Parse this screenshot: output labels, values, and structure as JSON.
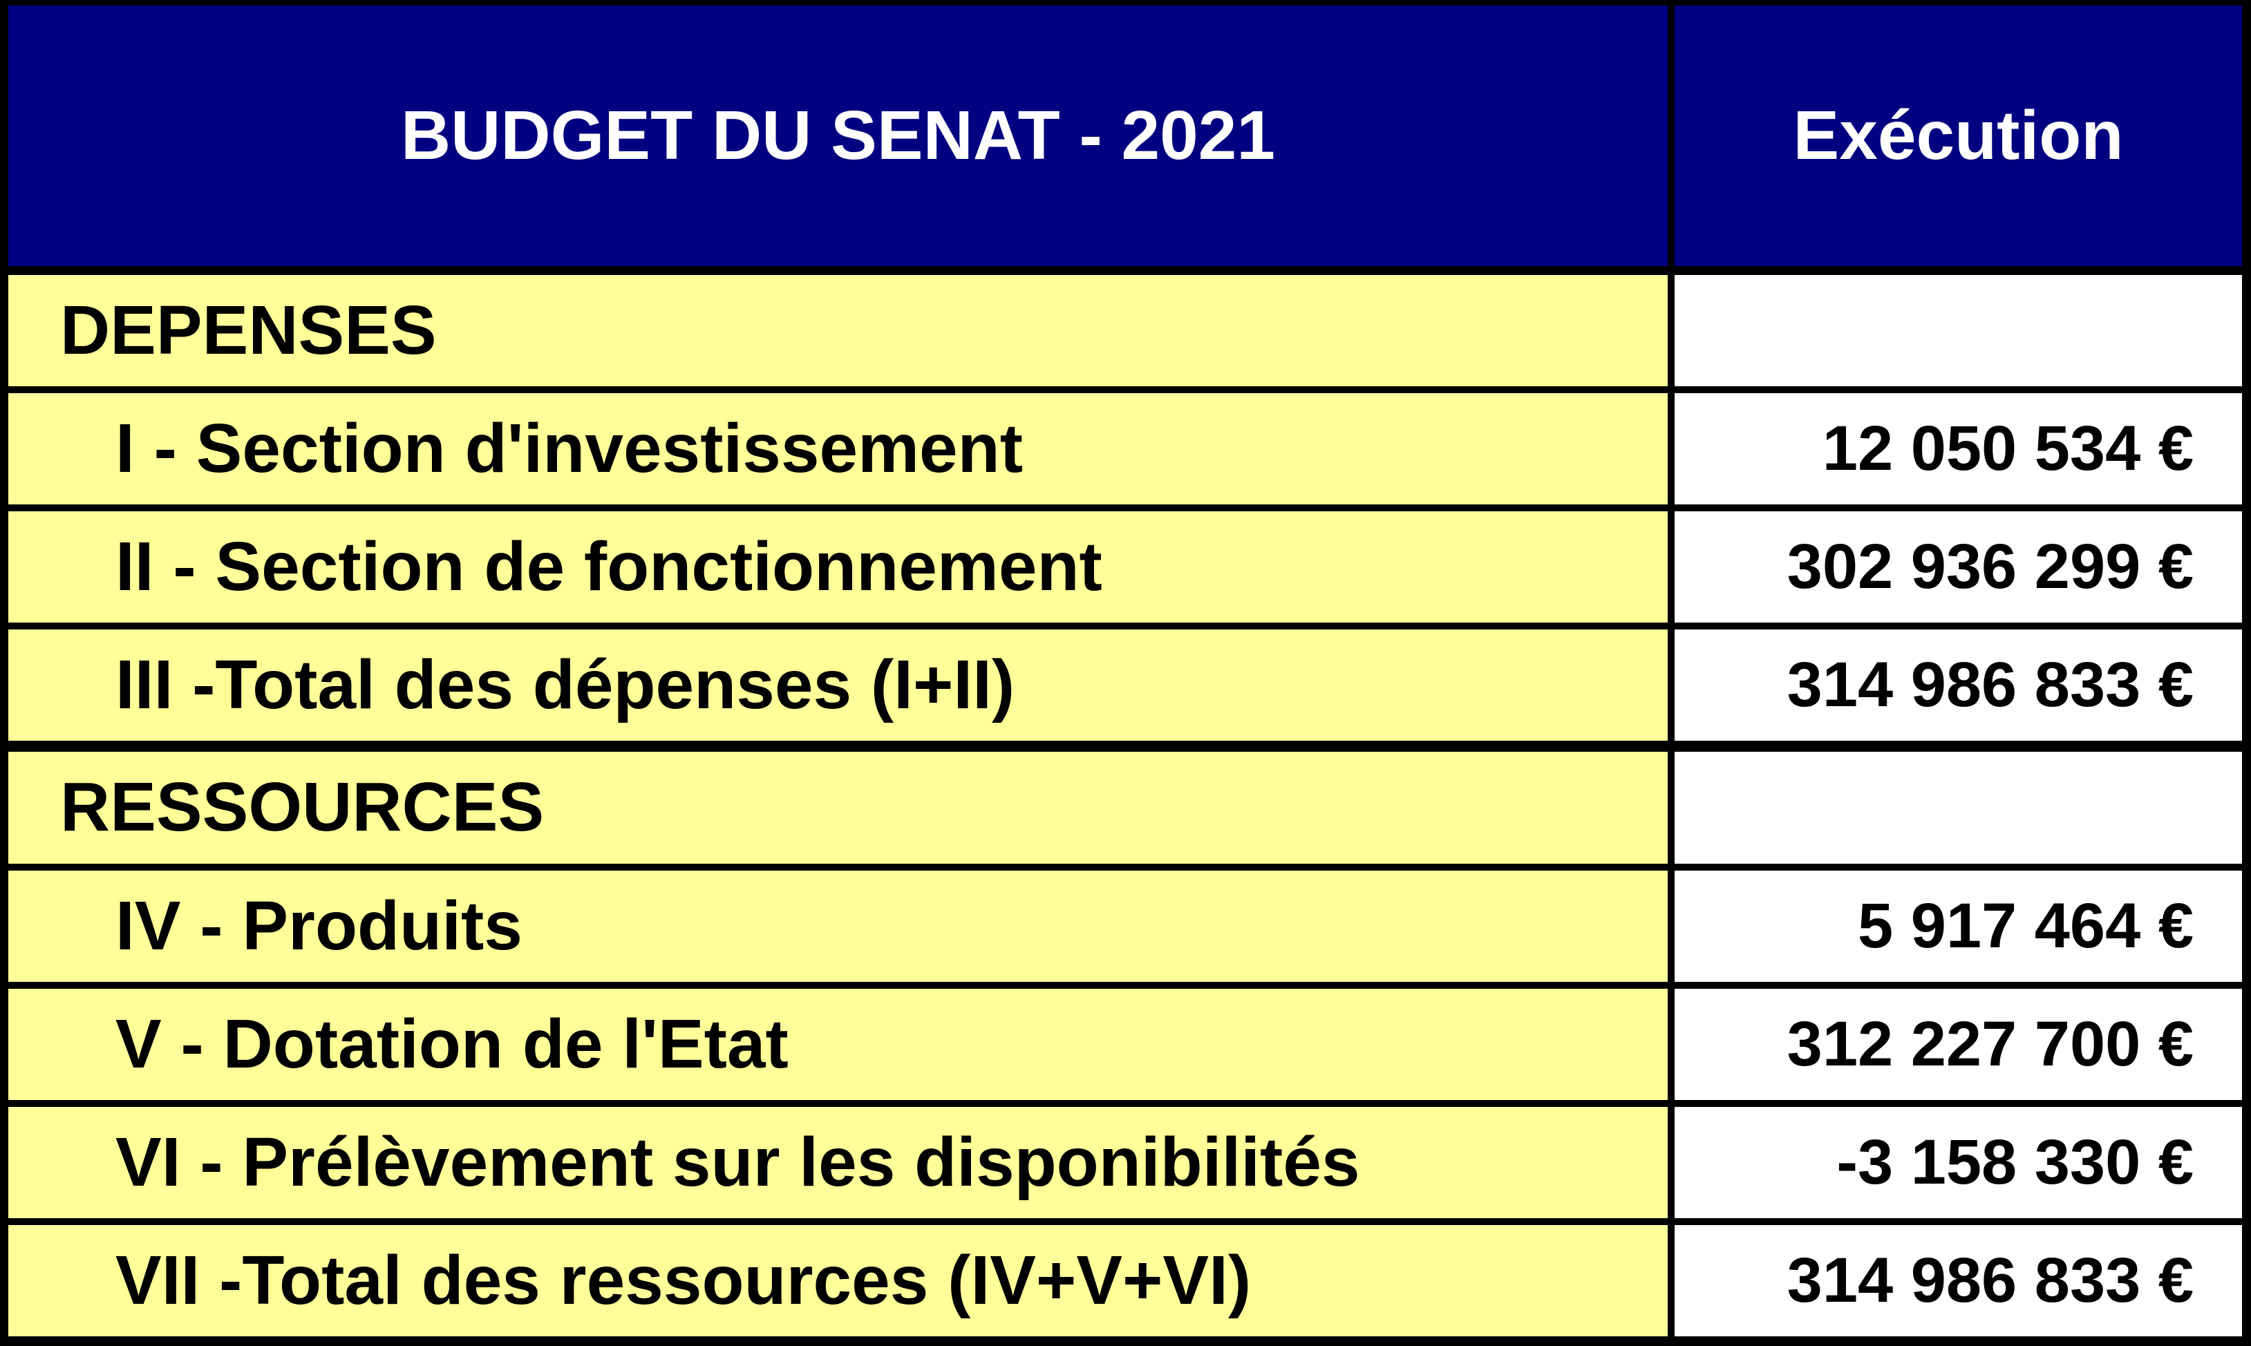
{
  "table": {
    "header": {
      "title": "BUDGET DU SENAT - 2021",
      "value_column": "Exécution"
    },
    "rows": [
      {
        "label": "DEPENSES",
        "value": "",
        "kind": "section-header"
      },
      {
        "label": "I - Section d'investissement",
        "value": "12 050 534 €",
        "kind": "item"
      },
      {
        "label": "II - Section de fonctionnement",
        "value": "302 936 299 €",
        "kind": "item"
      },
      {
        "label": "III -Total des dépenses (I+II)",
        "value": "314 986 833 €",
        "kind": "total"
      },
      {
        "label": "RESSOURCES",
        "value": "",
        "kind": "section-header"
      },
      {
        "label": "IV - Produits",
        "value": "5 917 464 €",
        "kind": "item"
      },
      {
        "label": "V - Dotation de l'Etat",
        "value": "312 227 700 €",
        "kind": "item"
      },
      {
        "label": "VI - Prélèvement sur les disponibilités",
        "value": "-3 158 330 €",
        "kind": "item"
      },
      {
        "label": "VII -Total des ressources (IV+V+VI)",
        "value": "314 986 833 €",
        "kind": "total"
      }
    ],
    "colors": {
      "header_bg": "#000080",
      "header_text": "#ffffff",
      "label_bg": "#ffff99",
      "value_bg": "#ffffff",
      "border": "#000000",
      "text": "#000000"
    }
  }
}
